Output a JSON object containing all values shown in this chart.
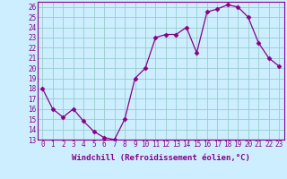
{
  "x": [
    0,
    1,
    2,
    3,
    4,
    5,
    6,
    7,
    8,
    9,
    10,
    11,
    12,
    13,
    14,
    15,
    16,
    17,
    18,
    19,
    20,
    21,
    22,
    23
  ],
  "y": [
    18,
    16,
    15.2,
    16,
    14.8,
    13.8,
    13.2,
    13,
    15,
    19,
    20,
    23,
    23.3,
    23.3,
    24,
    21.5,
    25.5,
    25.8,
    26.2,
    26,
    25,
    22.5,
    21,
    20.2
  ],
  "line_color": "#880088",
  "marker": "D",
  "marker_size": 2.5,
  "bg_color": "#cceeff",
  "grid_color": "#99cccc",
  "ylim": [
    13,
    26.5
  ],
  "yticks": [
    13,
    14,
    15,
    16,
    17,
    18,
    19,
    20,
    21,
    22,
    23,
    24,
    25,
    26
  ],
  "xlim": [
    -0.5,
    23.5
  ],
  "xticks": [
    0,
    1,
    2,
    3,
    4,
    5,
    6,
    7,
    8,
    9,
    10,
    11,
    12,
    13,
    14,
    15,
    16,
    17,
    18,
    19,
    20,
    21,
    22,
    23
  ],
  "xlabel": "Windchill (Refroidissement éolien,°C)",
  "xlabel_fontsize": 6.5,
  "tick_fontsize": 5.5
}
